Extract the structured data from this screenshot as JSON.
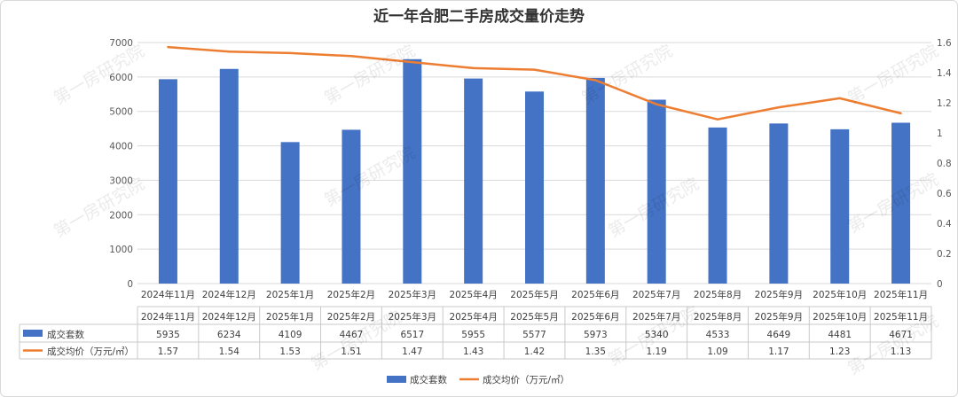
{
  "chart_data": {
    "type": "bar",
    "title": "近一年合肥二手房成交量价走势",
    "categories": [
      "2024年11月",
      "2024年12月",
      "2025年1月",
      "2025年2月",
      "2025年3月",
      "2025年4月",
      "2025年5月",
      "2025年6月",
      "2025年7月",
      "2025年8月",
      "2025年9月",
      "2025年10月",
      "2025年11月"
    ],
    "series": [
      {
        "name": "成交套数",
        "type": "bar",
        "axis": "left",
        "color": "#4472C4",
        "values": [
          5935,
          6234,
          4109,
          4467,
          6517,
          5955,
          5577,
          5973,
          5340,
          4533,
          4649,
          4481,
          4671
        ]
      },
      {
        "name": "成交均价（万元/㎡）",
        "type": "line",
        "axis": "right",
        "color": "#ED7D31",
        "values": [
          1.57,
          1.54,
          1.53,
          1.51,
          1.47,
          1.43,
          1.42,
          1.35,
          1.19,
          1.09,
          1.17,
          1.23,
          1.13
        ]
      }
    ],
    "y_left": {
      "min": 0,
      "max": 7000,
      "ticks": [
        "0",
        "1000",
        "2000",
        "3000",
        "4000",
        "5000",
        "6000",
        "7000"
      ]
    },
    "y_right": {
      "min": 0,
      "max": 1.6,
      "ticks": [
        "0",
        "0.2",
        "0.4",
        "0.6",
        "0.8",
        "1",
        "1.2",
        "1.4",
        "1.6"
      ]
    },
    "grid": true,
    "legend_position": "bottom",
    "data_table": true
  },
  "watermark": "第一房研究院"
}
